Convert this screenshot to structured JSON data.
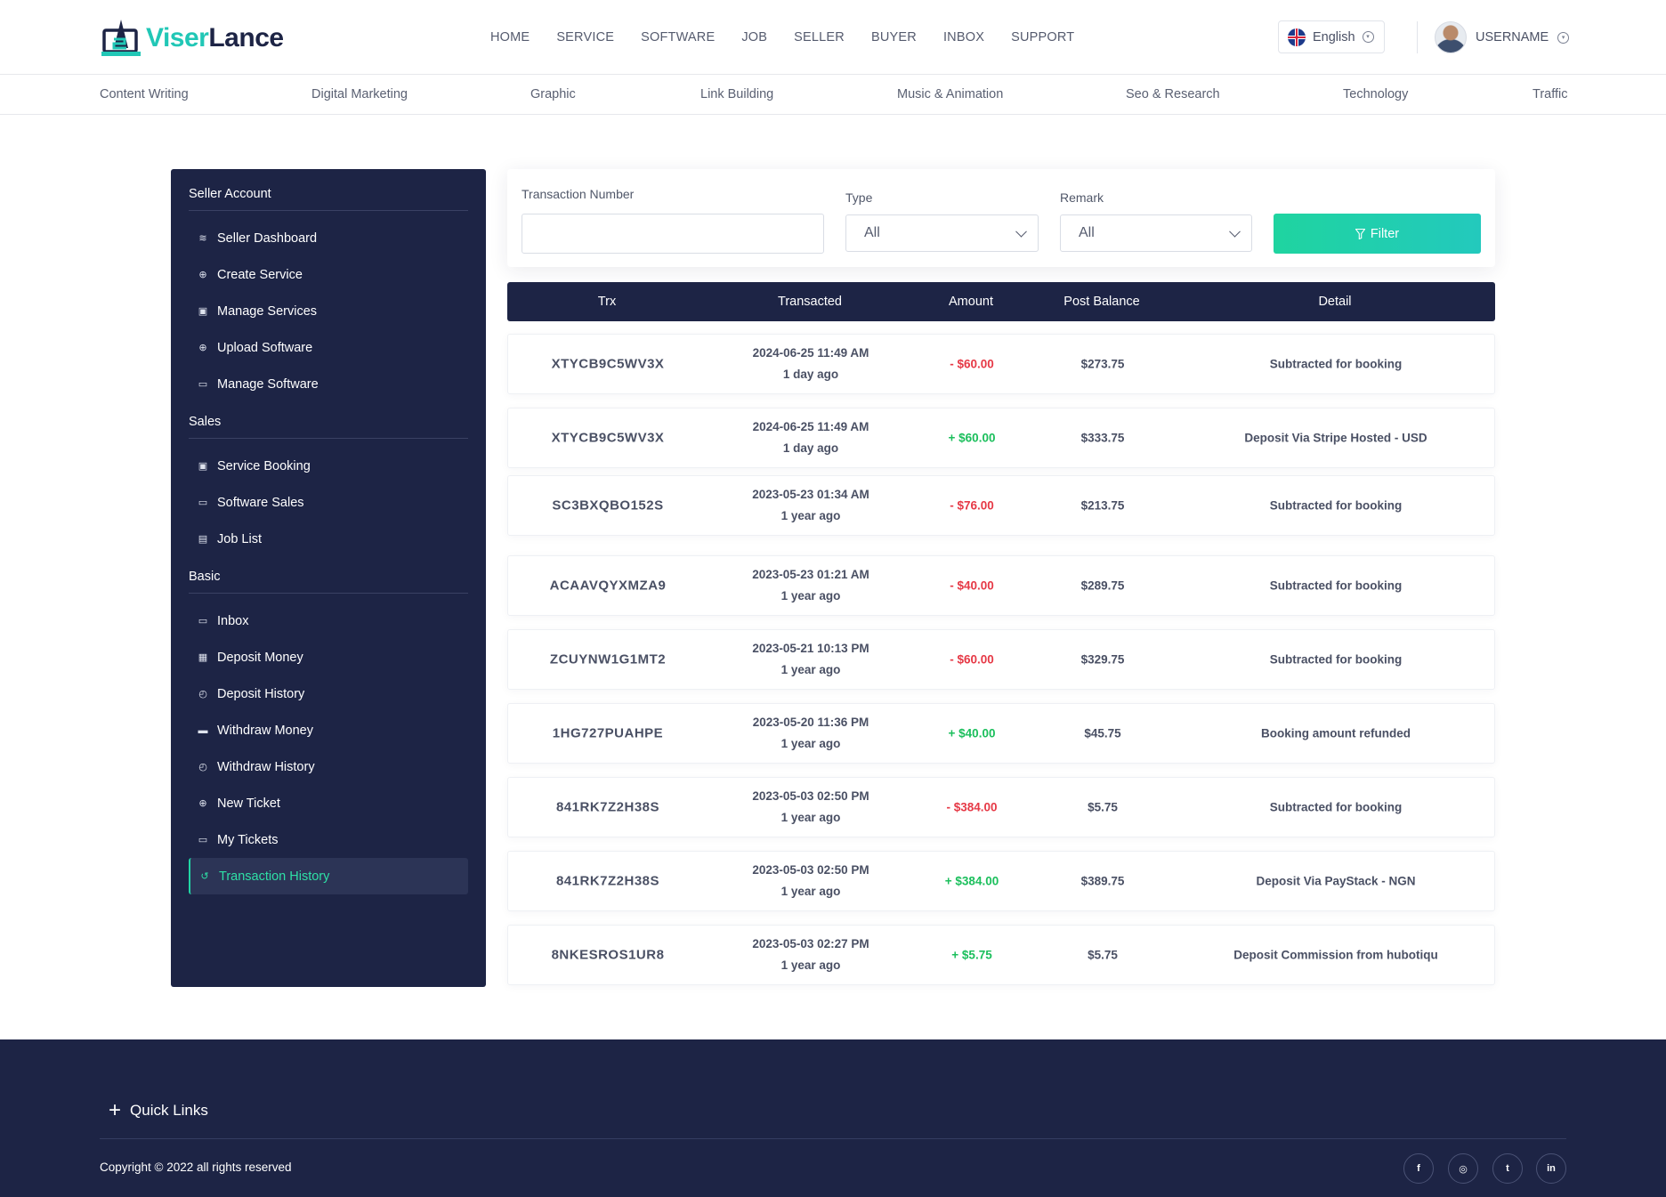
{
  "brand": {
    "part1": "Viser",
    "part2": "Lance"
  },
  "nav": [
    "HOME",
    "SERVICE",
    "SOFTWARE",
    "JOB",
    "SELLER",
    "BUYER",
    "INBOX",
    "SUPPORT"
  ],
  "language": "English",
  "user": {
    "name": "USERNAME"
  },
  "categories": [
    "Content Writing",
    "Digital Marketing",
    "Graphic",
    "Link Building",
    "Music & Animation",
    "Seo & Research",
    "Technology",
    "Traffic"
  ],
  "sidebar": {
    "sections": [
      {
        "title": "Seller Account",
        "items": [
          {
            "label": "Seller Dashboard",
            "icon": "layers-icon"
          },
          {
            "label": "Create Service",
            "icon": "plus-circle-icon"
          },
          {
            "label": "Manage Services",
            "icon": "car-icon"
          },
          {
            "label": "Upload Software",
            "icon": "plus-circle-icon"
          },
          {
            "label": "Manage Software",
            "icon": "laptop-icon"
          }
        ]
      },
      {
        "title": "Sales",
        "items": [
          {
            "label": "Service Booking",
            "icon": "car-icon"
          },
          {
            "label": "Software Sales",
            "icon": "laptop-icon"
          },
          {
            "label": "Job List",
            "icon": "briefcase-icon"
          }
        ]
      },
      {
        "title": "Basic",
        "items": [
          {
            "label": "Inbox",
            "icon": "inbox-icon"
          },
          {
            "label": "Deposit Money",
            "icon": "money-icon"
          },
          {
            "label": "Deposit History",
            "icon": "clock-icon"
          },
          {
            "label": "Withdraw Money",
            "icon": "cash-icon"
          },
          {
            "label": "Withdraw History",
            "icon": "clock-icon"
          },
          {
            "label": "New Ticket",
            "icon": "plus-circle-icon"
          },
          {
            "label": "My Tickets",
            "icon": "ticket-icon"
          },
          {
            "label": "Transaction History",
            "icon": "history-icon",
            "active": true
          }
        ]
      }
    ]
  },
  "filter": {
    "trx_label": "Transaction Number",
    "trx_value": "",
    "type_label": "Type",
    "type_value": "All",
    "remark_label": "Remark",
    "remark_value": "All",
    "button_label": "Filter"
  },
  "table": {
    "headers": [
      "Trx",
      "Transacted",
      "Amount",
      "Post Balance",
      "Detail"
    ],
    "rows": [
      {
        "trx": "XTYCB9C5WV3X",
        "date": "2024-06-25 11:49 AM",
        "ago": "1 day ago",
        "amount": "- $60.00",
        "sign": "neg",
        "balance": "$273.75",
        "detail": "Subtracted for booking"
      },
      {
        "trx": "XTYCB9C5WV3X",
        "date": "2024-06-25 11:49 AM",
        "ago": "1 day ago",
        "amount": "+ $60.00",
        "sign": "pos",
        "balance": "$333.75",
        "detail": "Deposit Via Stripe Hosted - USD"
      },
      {
        "trx": "SC3BXQBO152S",
        "date": "2023-05-23 01:34 AM",
        "ago": "1 year ago",
        "amount": "- $76.00",
        "sign": "neg",
        "balance": "$213.75",
        "detail": "Subtracted for booking"
      },
      {
        "trx": "ACAAVQYXMZA9",
        "date": "2023-05-23 01:21 AM",
        "ago": "1 year ago",
        "amount": "- $40.00",
        "sign": "neg",
        "balance": "$289.75",
        "detail": "Subtracted for booking"
      },
      {
        "trx": "ZCUYNW1G1MT2",
        "date": "2023-05-21 10:13 PM",
        "ago": "1 year ago",
        "amount": "- $60.00",
        "sign": "neg",
        "balance": "$329.75",
        "detail": "Subtracted for booking"
      },
      {
        "trx": "1HG727PUAHPE",
        "date": "2023-05-20 11:36 PM",
        "ago": "1 year ago",
        "amount": "+ $40.00",
        "sign": "pos",
        "balance": "$45.75",
        "detail": "Booking amount refunded"
      },
      {
        "trx": "841RK7Z2H38S",
        "date": "2023-05-03 02:50 PM",
        "ago": "1 year ago",
        "amount": "- $384.00",
        "sign": "neg",
        "balance": "$5.75",
        "detail": "Subtracted for booking"
      },
      {
        "trx": "841RK7Z2H38S",
        "date": "2023-05-03 02:50 PM",
        "ago": "1 year ago",
        "amount": "+ $384.00",
        "sign": "pos",
        "balance": "$389.75",
        "detail": "Deposit Via PayStack - NGN"
      },
      {
        "trx": "8NKESROS1UR8",
        "date": "2023-05-03 02:27 PM",
        "ago": "1 year ago",
        "amount": "+ $5.75",
        "sign": "pos",
        "balance": "$5.75",
        "detail": "Deposit Commission from hubotiqu"
      }
    ]
  },
  "footer": {
    "quick_links": "Quick Links",
    "copyright": "Copyright © 2022 all rights reserved",
    "social": [
      {
        "name": "facebook-icon",
        "glyph": "f"
      },
      {
        "name": "instagram-icon",
        "glyph": "◎"
      },
      {
        "name": "twitter-icon",
        "glyph": "t"
      },
      {
        "name": "linkedin-icon",
        "glyph": "in"
      }
    ]
  },
  "colors": {
    "navy": "#1d2445",
    "accent": "#21d4a4",
    "negative": "#e63946",
    "positive": "#1bbf5c"
  }
}
